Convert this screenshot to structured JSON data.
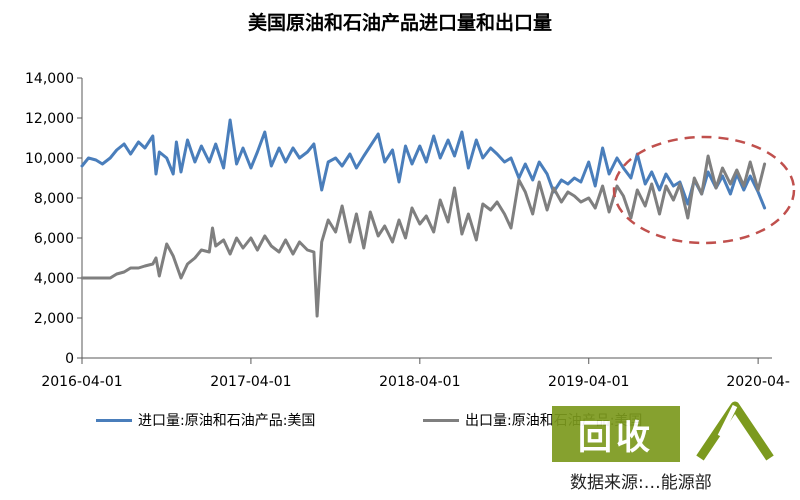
{
  "chart_data": {
    "type": "line",
    "title": "美国原油和石油产品进口量和出口量",
    "xlabel": "",
    "ylabel": "",
    "x_tick_labels": [
      "2016-04-01",
      "2017-04-01",
      "2018-04-01",
      "2019-04-01",
      "2020-04-"
    ],
    "y_tick_labels": [
      "0",
      "2,000",
      "4,000",
      "6,000",
      "8,000",
      "10,000",
      "12,000",
      "14,000"
    ],
    "ylim": [
      0,
      14000
    ],
    "xlim": [
      "2016-04-01",
      "2020-05-01"
    ],
    "grid": false,
    "legend_position": "bottom",
    "series": [
      {
        "name": "进口量:原油和石油产品:美国",
        "color": "#4a7ebb",
        "points": [
          [
            "2016-04-01",
            9600
          ],
          [
            "2016-04-15",
            10000
          ],
          [
            "2016-05-01",
            9900
          ],
          [
            "2016-05-15",
            9700
          ],
          [
            "2016-06-01",
            10000
          ],
          [
            "2016-06-15",
            10400
          ],
          [
            "2016-07-01",
            10700
          ],
          [
            "2016-07-15",
            10200
          ],
          [
            "2016-08-01",
            10800
          ],
          [
            "2016-08-15",
            10500
          ],
          [
            "2016-09-01",
            11100
          ],
          [
            "2016-09-08",
            9200
          ],
          [
            "2016-09-15",
            10300
          ],
          [
            "2016-10-01",
            10000
          ],
          [
            "2016-10-15",
            9200
          ],
          [
            "2016-10-22",
            10800
          ],
          [
            "2016-11-01",
            9300
          ],
          [
            "2016-11-15",
            10900
          ],
          [
            "2016-12-01",
            9800
          ],
          [
            "2016-12-15",
            10600
          ],
          [
            "2017-01-01",
            9800
          ],
          [
            "2017-01-15",
            10700
          ],
          [
            "2017-02-01",
            9500
          ],
          [
            "2017-02-15",
            11900
          ],
          [
            "2017-03-01",
            9700
          ],
          [
            "2017-03-15",
            10500
          ],
          [
            "2017-04-01",
            9500
          ],
          [
            "2017-04-15",
            10300
          ],
          [
            "2017-05-01",
            11300
          ],
          [
            "2017-05-15",
            9600
          ],
          [
            "2017-06-01",
            10500
          ],
          [
            "2017-06-15",
            9800
          ],
          [
            "2017-07-01",
            10500
          ],
          [
            "2017-07-15",
            10000
          ],
          [
            "2017-08-01",
            10300
          ],
          [
            "2017-08-15",
            10700
          ],
          [
            "2017-09-01",
            8400
          ],
          [
            "2017-09-15",
            9800
          ],
          [
            "2017-10-01",
            10000
          ],
          [
            "2017-10-15",
            9600
          ],
          [
            "2017-11-01",
            10200
          ],
          [
            "2017-11-15",
            9500
          ],
          [
            "2017-12-01",
            10100
          ],
          [
            "2018-01-01",
            11200
          ],
          [
            "2018-01-15",
            9800
          ],
          [
            "2018-02-01",
            10400
          ],
          [
            "2018-02-15",
            8800
          ],
          [
            "2018-03-01",
            10600
          ],
          [
            "2018-03-15",
            9700
          ],
          [
            "2018-04-01",
            10600
          ],
          [
            "2018-04-15",
            9800
          ],
          [
            "2018-05-01",
            11100
          ],
          [
            "2018-05-15",
            10000
          ],
          [
            "2018-06-01",
            10900
          ],
          [
            "2018-06-15",
            10100
          ],
          [
            "2018-07-01",
            11300
          ],
          [
            "2018-07-15",
            9500
          ],
          [
            "2018-08-01",
            10900
          ],
          [
            "2018-08-15",
            10000
          ],
          [
            "2018-09-01",
            10500
          ],
          [
            "2018-09-15",
            10200
          ],
          [
            "2018-10-01",
            9800
          ],
          [
            "2018-10-15",
            10000
          ],
          [
            "2018-11-01",
            9000
          ],
          [
            "2018-11-15",
            9700
          ],
          [
            "2018-12-01",
            8900
          ],
          [
            "2018-12-15",
            9800
          ],
          [
            "2019-01-01",
            9200
          ],
          [
            "2019-01-15",
            8300
          ],
          [
            "2019-02-01",
            8900
          ],
          [
            "2019-02-15",
            8700
          ],
          [
            "2019-03-01",
            9000
          ],
          [
            "2019-03-15",
            8800
          ],
          [
            "2019-04-01",
            9800
          ],
          [
            "2019-04-15",
            8600
          ],
          [
            "2019-05-01",
            10500
          ],
          [
            "2019-05-15",
            9200
          ],
          [
            "2019-06-01",
            10000
          ],
          [
            "2019-06-15",
            9500
          ],
          [
            "2019-07-01",
            9000
          ],
          [
            "2019-07-15",
            10200
          ],
          [
            "2019-08-01",
            8700
          ],
          [
            "2019-08-15",
            9300
          ],
          [
            "2019-09-01",
            8400
          ],
          [
            "2019-09-15",
            9200
          ],
          [
            "2019-10-01",
            8600
          ],
          [
            "2019-10-15",
            8800
          ],
          [
            "2019-11-01",
            7700
          ],
          [
            "2019-11-15",
            8900
          ],
          [
            "2019-12-01",
            8200
          ],
          [
            "2019-12-15",
            9300
          ],
          [
            "2020-01-01",
            8500
          ],
          [
            "2020-01-15",
            9100
          ],
          [
            "2020-02-01",
            8200
          ],
          [
            "2020-02-15",
            9200
          ],
          [
            "2020-03-01",
            8400
          ],
          [
            "2020-03-15",
            9100
          ],
          [
            "2020-04-01",
            8300
          ],
          [
            "2020-04-15",
            7500
          ]
        ]
      },
      {
        "name": "出口量:原油和石油产品:美国",
        "color": "#7f7f7f",
        "points": [
          [
            "2016-04-01",
            4000
          ],
          [
            "2016-05-01",
            4000
          ],
          [
            "2016-06-01",
            4000
          ],
          [
            "2016-06-15",
            4200
          ],
          [
            "2016-07-01",
            4300
          ],
          [
            "2016-07-15",
            4500
          ],
          [
            "2016-08-01",
            4500
          ],
          [
            "2016-08-15",
            4600
          ],
          [
            "2016-09-01",
            4700
          ],
          [
            "2016-09-08",
            5000
          ],
          [
            "2016-09-15",
            4100
          ],
          [
            "2016-10-01",
            5700
          ],
          [
            "2016-10-15",
            5100
          ],
          [
            "2016-11-01",
            4000
          ],
          [
            "2016-11-15",
            4700
          ],
          [
            "2016-12-01",
            5000
          ],
          [
            "2016-12-15",
            5400
          ],
          [
            "2017-01-01",
            5300
          ],
          [
            "2017-01-08",
            6500
          ],
          [
            "2017-01-15",
            5600
          ],
          [
            "2017-02-01",
            5900
          ],
          [
            "2017-02-15",
            5200
          ],
          [
            "2017-03-01",
            6000
          ],
          [
            "2017-03-15",
            5500
          ],
          [
            "2017-04-01",
            6000
          ],
          [
            "2017-04-15",
            5400
          ],
          [
            "2017-05-01",
            6100
          ],
          [
            "2017-05-15",
            5600
          ],
          [
            "2017-06-01",
            5300
          ],
          [
            "2017-06-15",
            5900
          ],
          [
            "2017-07-01",
            5200
          ],
          [
            "2017-07-15",
            5800
          ],
          [
            "2017-08-01",
            5400
          ],
          [
            "2017-08-15",
            5300
          ],
          [
            "2017-08-22",
            2100
          ],
          [
            "2017-09-01",
            5800
          ],
          [
            "2017-09-15",
            6900
          ],
          [
            "2017-10-01",
            6300
          ],
          [
            "2017-10-15",
            7600
          ],
          [
            "2017-11-01",
            5800
          ],
          [
            "2017-11-15",
            7200
          ],
          [
            "2017-12-01",
            5500
          ],
          [
            "2017-12-15",
            7300
          ],
          [
            "2018-01-01",
            6100
          ],
          [
            "2018-01-15",
            6600
          ],
          [
            "2018-02-01",
            5800
          ],
          [
            "2018-02-15",
            6900
          ],
          [
            "2018-03-01",
            6000
          ],
          [
            "2018-03-15",
            7500
          ],
          [
            "2018-04-01",
            6700
          ],
          [
            "2018-04-15",
            7100
          ],
          [
            "2018-05-01",
            6300
          ],
          [
            "2018-05-15",
            7900
          ],
          [
            "2018-06-01",
            6800
          ],
          [
            "2018-06-15",
            8500
          ],
          [
            "2018-07-01",
            6200
          ],
          [
            "2018-07-15",
            7200
          ],
          [
            "2018-08-01",
            5900
          ],
          [
            "2018-08-15",
            7700
          ],
          [
            "2018-09-01",
            7400
          ],
          [
            "2018-09-15",
            7800
          ],
          [
            "2018-10-01",
            7200
          ],
          [
            "2018-10-15",
            6500
          ],
          [
            "2018-11-01",
            8900
          ],
          [
            "2018-11-15",
            8300
          ],
          [
            "2018-12-01",
            7200
          ],
          [
            "2018-12-15",
            8800
          ],
          [
            "2019-01-01",
            7400
          ],
          [
            "2019-01-15",
            8500
          ],
          [
            "2019-02-01",
            7800
          ],
          [
            "2019-02-15",
            8300
          ],
          [
            "2019-03-01",
            8100
          ],
          [
            "2019-03-15",
            7800
          ],
          [
            "2019-04-01",
            8000
          ],
          [
            "2019-04-15",
            7500
          ],
          [
            "2019-05-01",
            8600
          ],
          [
            "2019-05-15",
            7300
          ],
          [
            "2019-06-01",
            8600
          ],
          [
            "2019-06-15",
            8100
          ],
          [
            "2019-07-01",
            7000
          ],
          [
            "2019-07-15",
            8400
          ],
          [
            "2019-08-01",
            7600
          ],
          [
            "2019-08-15",
            8700
          ],
          [
            "2019-09-01",
            7200
          ],
          [
            "2019-09-15",
            8600
          ],
          [
            "2019-10-01",
            7900
          ],
          [
            "2019-10-15",
            8700
          ],
          [
            "2019-11-01",
            7000
          ],
          [
            "2019-11-15",
            9000
          ],
          [
            "2019-12-01",
            8200
          ],
          [
            "2019-12-15",
            10100
          ],
          [
            "2020-01-01",
            8500
          ],
          [
            "2020-01-15",
            9500
          ],
          [
            "2020-02-01",
            8700
          ],
          [
            "2020-02-15",
            9400
          ],
          [
            "2020-03-01",
            8600
          ],
          [
            "2020-03-15",
            9800
          ],
          [
            "2020-04-01",
            8400
          ],
          [
            "2020-04-15",
            9700
          ]
        ]
      }
    ]
  },
  "watermark": {
    "box_text": "回收",
    "sub_text": "数据来源:…能源部"
  }
}
